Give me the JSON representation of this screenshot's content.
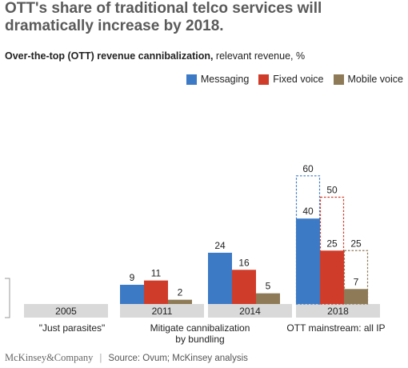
{
  "title": "OTT's share of traditional telco services will dramatically increase by 2018.",
  "subtitle": {
    "bold": "Over-the-top (OTT) revenue cannibalization,",
    "normal": " relevant revenue, %"
  },
  "colors": {
    "Messaging": "#3c7ac6",
    "Fixed voice": "#d03c2a",
    "Mobile voice": "#8e7a56",
    "category_band": "#d9d9d9"
  },
  "footer": {
    "brand": "McKinsey&Company",
    "separator": "|",
    "source": "Source: Ovum; McKinsey analysis"
  },
  "chart_data": {
    "type": "bar",
    "categories": [
      "2005",
      "2011",
      "2014",
      "2018"
    ],
    "series": [
      {
        "name": "Messaging",
        "values": [
          null,
          9,
          24,
          40
        ]
      },
      {
        "name": "Fixed voice",
        "values": [
          null,
          11,
          16,
          25
        ]
      },
      {
        "name": "Mobile voice",
        "values": [
          null,
          2,
          5,
          7
        ]
      }
    ],
    "projected_2018": {
      "Messaging": 60,
      "Fixed voice": 50,
      "Mobile voice": 25
    },
    "phases": [
      {
        "label": "\"Just parasites\""
      },
      {
        "label": "Mitigate cannibalization by bundling",
        "lines": [
          "Mitigate cannibalization",
          "by bundling"
        ]
      },
      {
        "label": "OTT mainstream: all IP"
      }
    ],
    "legend_position": "top-right",
    "ylim": [
      0,
      60
    ]
  }
}
